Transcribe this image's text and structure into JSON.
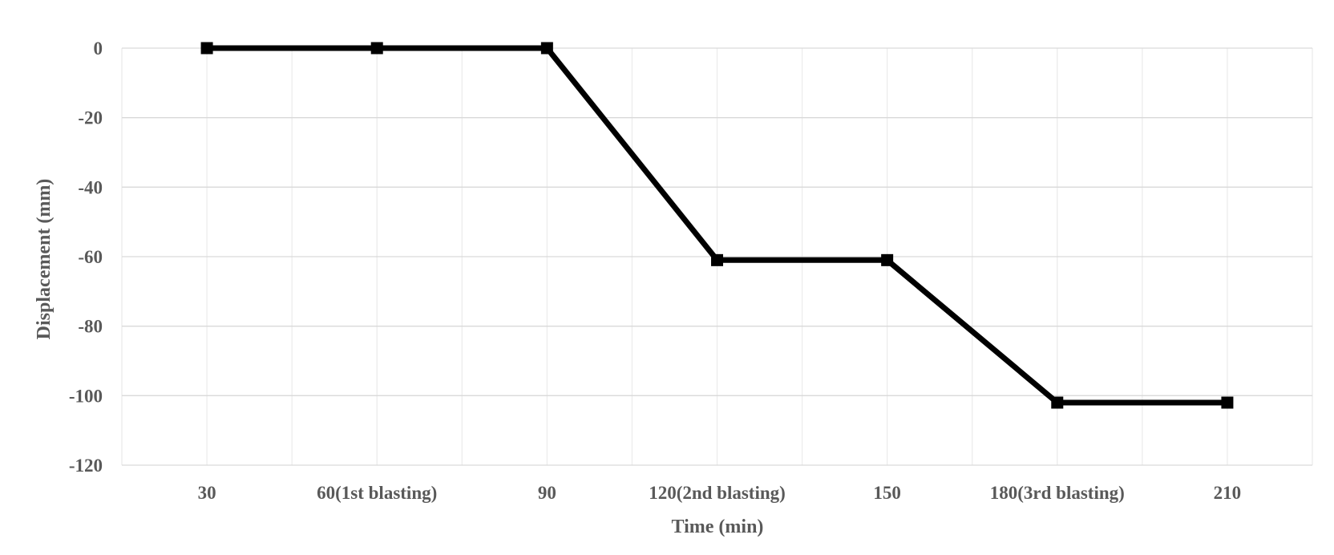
{
  "chart_data": {
    "type": "line",
    "title": "",
    "xlabel": "Time (min)",
    "ylabel": "Displacement (mm)",
    "categories": [
      "30",
      "60(1st blasting)",
      "90",
      "120(2nd blasting)",
      "150",
      "180(3rd blasting)",
      "210"
    ],
    "series": [
      {
        "values": [
          0,
          0,
          0,
          -61,
          -61,
          -102,
          -102
        ],
        "color": "#000000",
        "marker": "square"
      }
    ],
    "ylim": [
      -120,
      0
    ],
    "yticks": [
      0,
      -20,
      -40,
      -60,
      -80,
      -100,
      -120
    ],
    "grid": true,
    "legend": "none"
  }
}
